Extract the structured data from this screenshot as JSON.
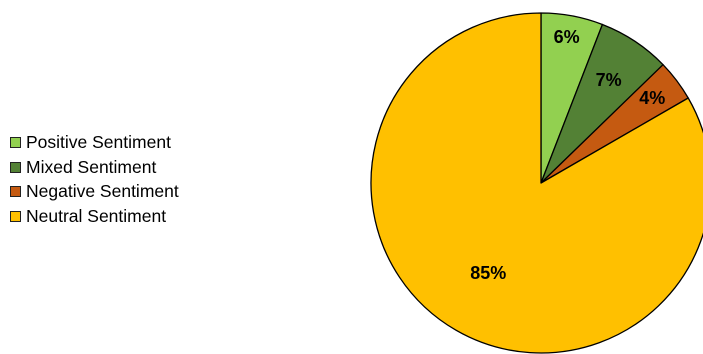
{
  "chart_data": {
    "type": "pie",
    "title": "",
    "legend_position": "left",
    "start_angle_deg": 0,
    "direction": "clockwise",
    "slices": [
      {
        "name": "Positive Sentiment",
        "value": 6,
        "label": "6%",
        "color": "#92d050"
      },
      {
        "name": "Mixed Sentiment",
        "value": 7,
        "label": "7%",
        "color": "#538135"
      },
      {
        "name": "Negative Sentiment",
        "value": 4,
        "label": "4%",
        "color": "#c55a11"
      },
      {
        "name": "Neutral Sentiment",
        "value": 85,
        "label": "85%",
        "color": "#ffc000"
      }
    ],
    "outline_color": "#000000"
  }
}
